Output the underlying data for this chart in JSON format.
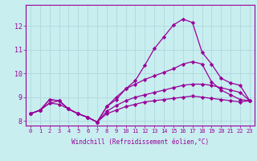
{
  "xlabel": "Windchill (Refroidissement éolien,°C)",
  "ylabel": "",
  "background_color": "#c8eef0",
  "line_color": "#990099",
  "grid_color": "#b0d8da",
  "xlim": [
    -0.5,
    23.5
  ],
  "ylim": [
    7.8,
    12.9
  ],
  "xticks": [
    0,
    1,
    2,
    3,
    4,
    5,
    6,
    7,
    8,
    9,
    10,
    11,
    12,
    13,
    14,
    15,
    16,
    17,
    18,
    19,
    20,
    21,
    22,
    23
  ],
  "yticks": [
    8,
    9,
    10,
    11,
    12
  ],
  "series": [
    [
      8.3,
      8.45,
      8.9,
      8.85,
      8.5,
      8.3,
      8.15,
      7.95,
      8.6,
      8.9,
      9.35,
      9.7,
      10.35,
      11.05,
      11.55,
      12.05,
      12.3,
      12.15,
      10.9,
      10.4,
      9.8,
      9.6,
      9.5,
      8.85
    ],
    [
      8.3,
      8.45,
      8.9,
      8.85,
      8.5,
      8.3,
      8.15,
      7.95,
      8.6,
      9.0,
      9.35,
      9.55,
      9.75,
      9.9,
      10.05,
      10.2,
      10.4,
      10.5,
      10.4,
      9.65,
      9.3,
      9.1,
      8.9,
      8.85
    ],
    [
      8.3,
      8.45,
      8.75,
      8.85,
      8.5,
      8.3,
      8.15,
      7.95,
      8.4,
      8.65,
      8.85,
      9.0,
      9.1,
      9.2,
      9.3,
      9.4,
      9.5,
      9.55,
      9.55,
      9.5,
      9.4,
      9.3,
      9.2,
      8.85
    ],
    [
      8.3,
      8.45,
      8.75,
      8.7,
      8.5,
      8.3,
      8.15,
      7.95,
      8.3,
      8.45,
      8.6,
      8.7,
      8.8,
      8.85,
      8.9,
      8.95,
      9.0,
      9.05,
      9.0,
      8.95,
      8.9,
      8.85,
      8.8,
      8.85
    ]
  ],
  "marker": "D",
  "marker_size": 2.2,
  "linewidth": 0.9,
  "tick_fontsize": 5.0,
  "xlabel_fontsize": 5.5
}
